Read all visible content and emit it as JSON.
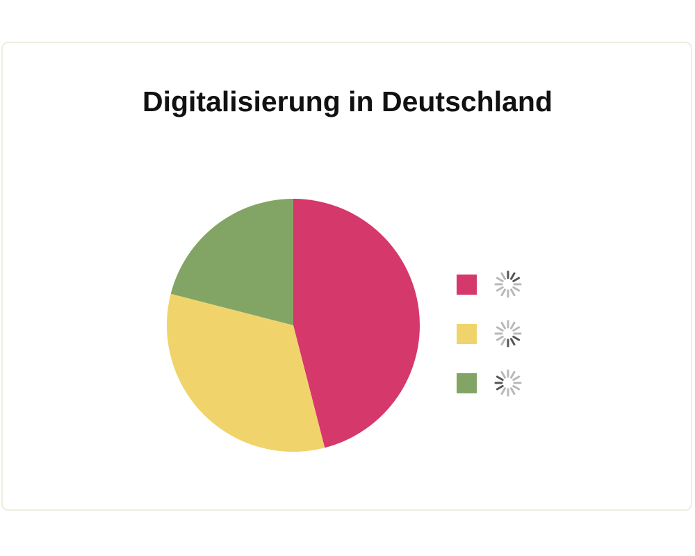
{
  "chart_data": {
    "type": "pie",
    "title": "Digitalisierung in Deutschland",
    "values": [
      46,
      33,
      21
    ],
    "colors": [
      "#d5386b",
      "#f0d46b",
      "#82a566"
    ],
    "legend": "right"
  }
}
